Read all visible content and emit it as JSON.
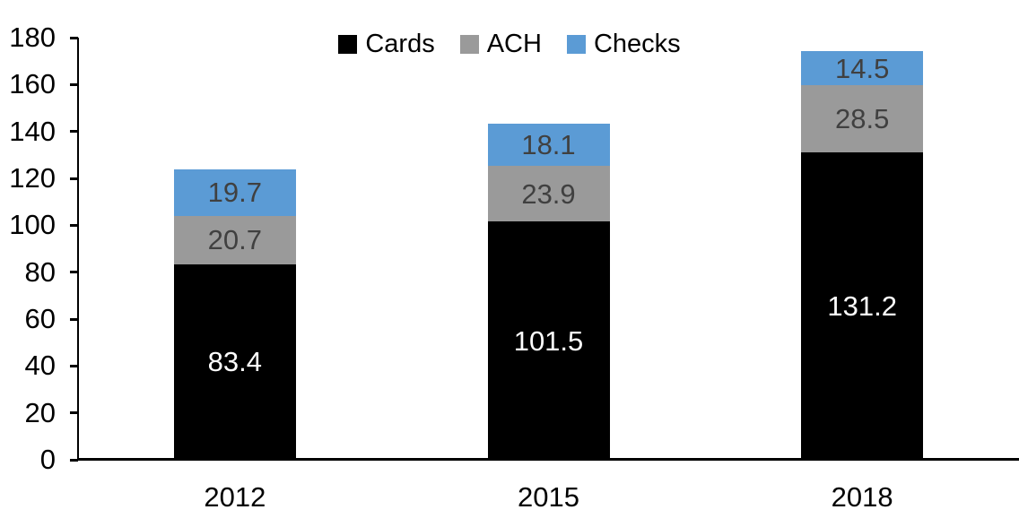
{
  "chart_data": {
    "type": "bar",
    "stacked": true,
    "title": "",
    "xlabel": "",
    "ylabel": "",
    "categories": [
      "2012",
      "2015",
      "2018"
    ],
    "series": [
      {
        "name": "Cards",
        "color": "#000000",
        "label_color": "#ffffff",
        "values": [
          83.4,
          101.5,
          131.2
        ]
      },
      {
        "name": "ACH",
        "color": "#9A9A9A",
        "label_color": "#404040",
        "values": [
          20.7,
          23.9,
          28.5
        ]
      },
      {
        "name": "Checks",
        "color": "#5B9BD5",
        "label_color": "#404040",
        "values": [
          19.7,
          18.1,
          14.5
        ]
      }
    ],
    "stack_totals": [
      123.8,
      143.5,
      174.2
    ],
    "ylim": [
      0,
      180
    ],
    "yticks": [
      0,
      20,
      40,
      60,
      80,
      100,
      120,
      140,
      160,
      180
    ],
    "grid": false,
    "legend_position": "top",
    "axis_color": "#000000",
    "background_color": "#ffffff"
  }
}
